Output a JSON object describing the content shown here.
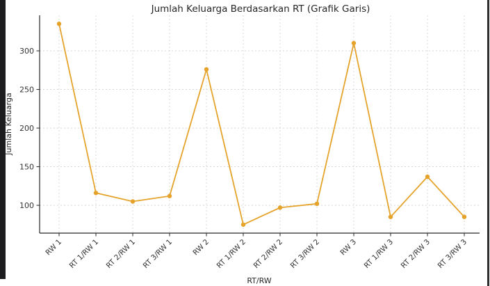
{
  "frame": {
    "background": "#ffffff",
    "left_bar_color": "#1d1d1f",
    "right_line_color": "#2e2e30"
  },
  "chart_data": {
    "type": "line",
    "title": "Jumlah Keluarga Berdasarkan RT (Grafik Garis)",
    "xlabel": "RT/RW",
    "ylabel": "Jumlah Keluarga",
    "categories": [
      "RW 1",
      "RT 1/RW 1",
      "RT 2/RW 1",
      "RT 3/RW 1",
      "RW 2",
      "RT 1/RW 2",
      "RT 2/RW 2",
      "RT 3/RW 2",
      "RW 3",
      "RT 1/RW 3",
      "RT 2/RW 3",
      "RT 3/RW 3"
    ],
    "values": [
      335,
      116,
      105,
      112,
      276,
      75,
      97,
      102,
      310,
      85,
      137,
      85
    ],
    "yticks": [
      100,
      150,
      200,
      250,
      300
    ],
    "ylim": [
      64,
      346
    ],
    "grid": true,
    "grid_style": "dashed",
    "legend": "none",
    "marker": "circle",
    "line_color": "#E5A32B",
    "marker_color": "#E5A32B",
    "grid_color": "#cfcfcf",
    "axis_color": "#262626",
    "text_color": "#262626",
    "tick_label_color": "#333333"
  }
}
